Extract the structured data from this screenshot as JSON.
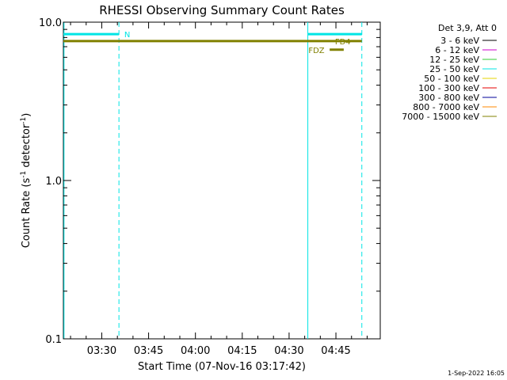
{
  "chart_data": {
    "type": "line",
    "title": "RHESSI Observing Summary Count Rates",
    "xlabel": "Start Time (07-Nov-16 03:17:42)",
    "ylabel_main": "Count Rate (s",
    "ylabel_sup1": "-1",
    "ylabel_mid": " detector",
    "ylabel_sup2": "-1",
    "ylabel_end": ")",
    "y_scale": "log",
    "ylim": [
      0.1,
      10.0
    ],
    "xlim_minutes": [
      0,
      101.5
    ],
    "x_ticks": [
      {
        "minute": 12.3,
        "label": "03:30"
      },
      {
        "minute": 27.3,
        "label": "03:45"
      },
      {
        "minute": 42.3,
        "label": "04:00"
      },
      {
        "minute": 57.3,
        "label": "04:15"
      },
      {
        "minute": 72.3,
        "label": "04:30"
      },
      {
        "minute": 87.3,
        "label": "04:45"
      }
    ],
    "y_ticks": [
      {
        "value": 0.1,
        "label": "0.1"
      },
      {
        "value": 1.0,
        "label": "1.0"
      },
      {
        "value": 10.0,
        "label": "10.0"
      }
    ],
    "legend_position": "top-right",
    "legend_header": "Det 3,9, Att 0",
    "series": [
      {
        "name": "3 - 6 keV",
        "color": "#000000",
        "segments": []
      },
      {
        "name": "6 - 12 keV",
        "color": "#cc00cc",
        "segments": []
      },
      {
        "name": "12 - 25 keV",
        "color": "#33cc33",
        "segments": []
      },
      {
        "name": "25 - 50 keV",
        "color": "#00e5e5",
        "segments": [
          {
            "x": [
              0,
              17.8
            ],
            "y": 8.4
          },
          {
            "x": [
              78.3,
              95.6
            ],
            "y": 8.4
          }
        ]
      },
      {
        "name": "50 - 100 keV",
        "color": "#e5d500",
        "segments": []
      },
      {
        "name": "100 - 300 keV",
        "color": "#e50000",
        "segments": []
      },
      {
        "name": "300 - 800 keV",
        "color": "#000099",
        "segments": []
      },
      {
        "name": "800 - 7000 keV",
        "color": "#ff8800",
        "segments": []
      },
      {
        "name": "7000 - 15000 keV",
        "color": "#808000",
        "segments": [
          {
            "x": [
              0,
              95.6
            ],
            "y": 7.6
          },
          {
            "x": [
              85.3,
              89.8
            ],
            "y": 6.7
          }
        ]
      }
    ],
    "vlines": [
      {
        "minute": 0.2,
        "style": "solid",
        "color": "#00e5e5"
      },
      {
        "minute": 17.8,
        "style": "dashed",
        "color": "#00e5e5"
      },
      {
        "minute": 78.3,
        "style": "solid",
        "color": "#00e5e5"
      },
      {
        "minute": 95.6,
        "style": "dashed",
        "color": "#00e5e5"
      }
    ],
    "annotations": [
      {
        "text": "N",
        "minute": 19.5,
        "value": 8.4,
        "color": "#00e5e5"
      },
      {
        "text": "FD4",
        "minute": 87.0,
        "value": 7.6,
        "color": "#808000"
      },
      {
        "text": "FDZ",
        "minute": 78.5,
        "value": 6.7,
        "color": "#808000"
      }
    ],
    "footer_date": "1-Sep-2022 16:05"
  }
}
